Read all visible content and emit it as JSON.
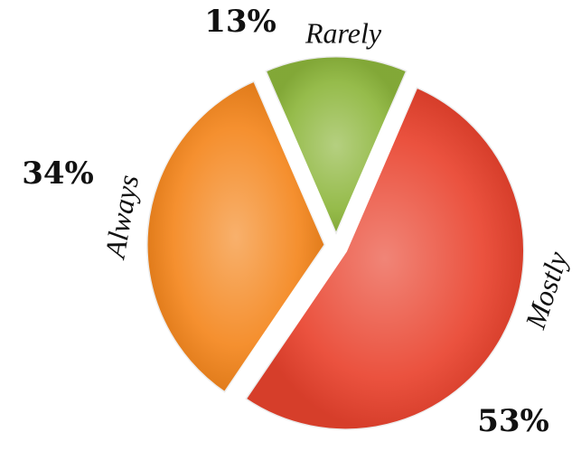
{
  "chart_data": {
    "type": "pie",
    "categories": [
      "Rarely",
      "Mostly",
      "Always"
    ],
    "values": [
      13,
      53,
      34
    ],
    "value_labels": [
      "13%",
      "53%",
      "34%"
    ],
    "colors": [
      "#8db63c",
      "#e9432e",
      "#f4861d"
    ]
  }
}
